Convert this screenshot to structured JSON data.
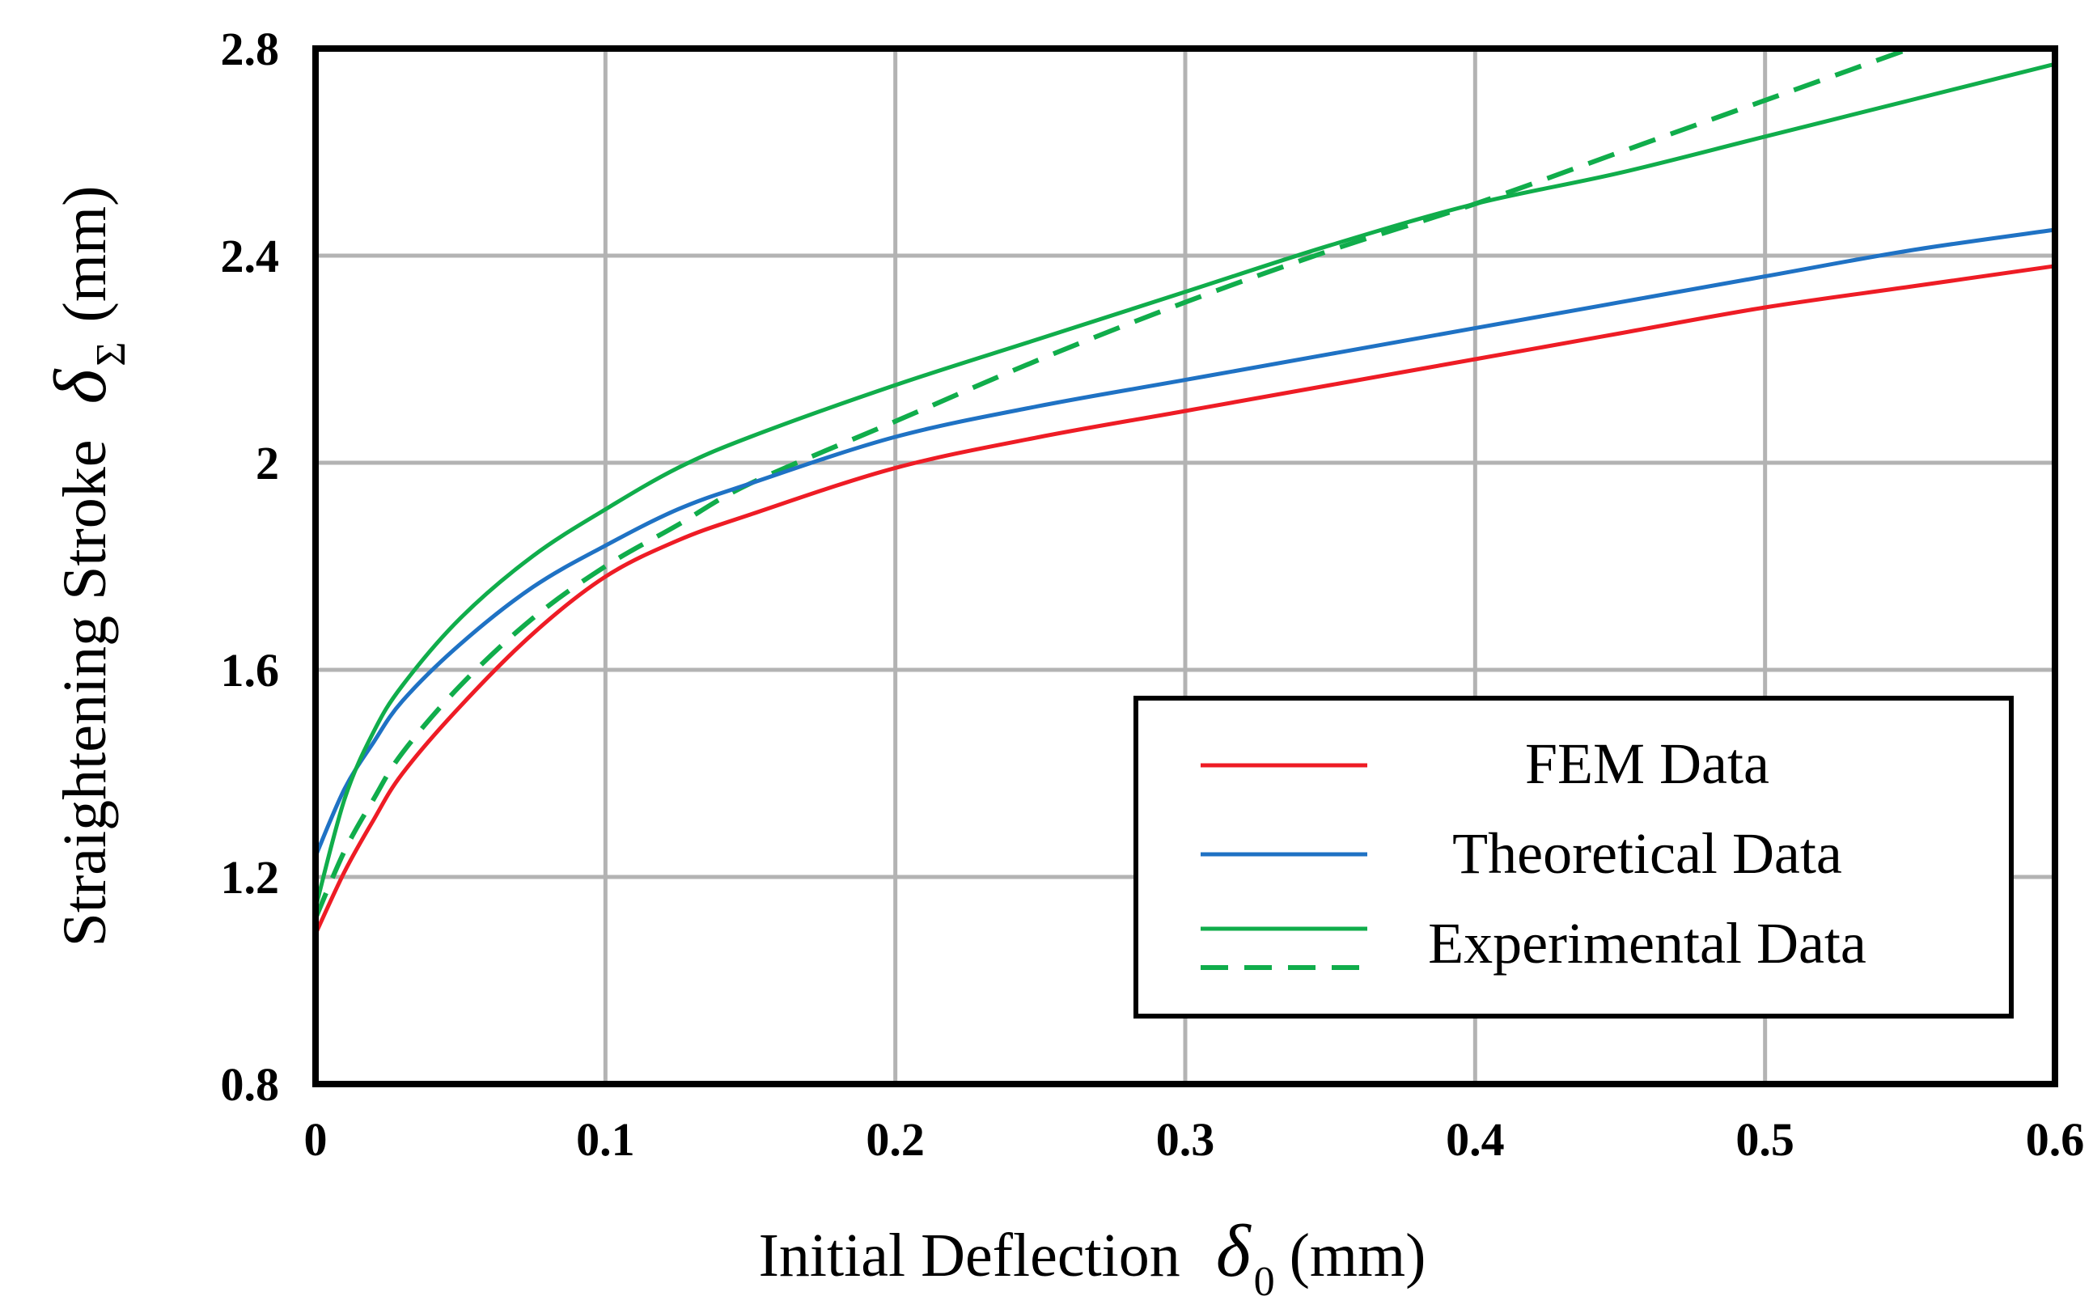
{
  "chart_data": {
    "type": "line",
    "title": "",
    "xlabel": "Initial Deflection",
    "xlabel_symbol": "δ",
    "xlabel_subscript": "0",
    "xlabel_unit": "(mm)",
    "ylabel": "Straightening Stroke",
    "ylabel_symbol": "δ",
    "ylabel_subscript": "Σ",
    "ylabel_unit": "(mm)",
    "xlim": [
      0,
      0.6
    ],
    "ylim": [
      0.8,
      2.8
    ],
    "xticks": [
      0,
      0.1,
      0.2,
      0.3,
      0.4,
      0.5,
      0.6
    ],
    "xtick_labels": [
      "0",
      "0.1",
      "0.2",
      "0.3",
      "0.4",
      "0.5",
      "0.6"
    ],
    "yticks": [
      0.8,
      1.2,
      1.6,
      2.0,
      2.4,
      2.8
    ],
    "ytick_labels": [
      "0.8",
      "1.2",
      "1.6",
      "2",
      "2.4",
      "2.8"
    ],
    "grid": true,
    "legend_position": "bottom-right",
    "series": [
      {
        "name": "FEM Data",
        "color": "#ee1c25",
        "style": "solid",
        "x": [
          0,
          0.01,
          0.02,
          0.03,
          0.05,
          0.075,
          0.1,
          0.125,
          0.15,
          0.2,
          0.25,
          0.3,
          0.35,
          0.4,
          0.45,
          0.5,
          0.55,
          0.6
        ],
        "y": [
          1.09,
          1.21,
          1.31,
          1.4,
          1.53,
          1.67,
          1.78,
          1.85,
          1.9,
          1.99,
          2.05,
          2.1,
          2.15,
          2.2,
          2.25,
          2.3,
          2.34,
          2.38
        ]
      },
      {
        "name": "Theoretical Data",
        "color": "#1f72c4",
        "style": "solid",
        "x": [
          0,
          0.01,
          0.02,
          0.03,
          0.05,
          0.075,
          0.1,
          0.125,
          0.15,
          0.2,
          0.25,
          0.3,
          0.35,
          0.4,
          0.45,
          0.5,
          0.55,
          0.6
        ],
        "y": [
          1.24,
          1.37,
          1.46,
          1.54,
          1.65,
          1.76,
          1.84,
          1.91,
          1.96,
          2.05,
          2.11,
          2.16,
          2.21,
          2.26,
          2.31,
          2.36,
          2.41,
          2.45
        ]
      },
      {
        "name": "Experimental Data",
        "color": "#10ad4b",
        "style": "solid",
        "x": [
          0,
          0.01,
          0.02,
          0.03,
          0.05,
          0.075,
          0.1,
          0.125,
          0.15,
          0.2,
          0.25,
          0.3,
          0.35,
          0.4,
          0.45,
          0.5,
          0.55,
          0.6
        ],
        "y": [
          1.14,
          1.35,
          1.48,
          1.57,
          1.7,
          1.82,
          1.91,
          1.99,
          2.05,
          2.15,
          2.24,
          2.33,
          2.42,
          2.5,
          2.56,
          2.63,
          2.7,
          2.77
        ]
      },
      {
        "name": "Experimental Data (dashed)",
        "color": "#10ad4b",
        "style": "dashed",
        "x": [
          0,
          0.01,
          0.02,
          0.03,
          0.05,
          0.075,
          0.1,
          0.125,
          0.15,
          0.2,
          0.25,
          0.3,
          0.35,
          0.4,
          0.45,
          0.5,
          0.55
        ],
        "y": [
          1.12,
          1.25,
          1.35,
          1.44,
          1.57,
          1.7,
          1.8,
          1.88,
          1.96,
          2.08,
          2.2,
          2.31,
          2.41,
          2.5,
          2.6,
          2.7,
          2.8
        ]
      }
    ],
    "legend": [
      {
        "label": "FEM Data",
        "color": "#ee1c25",
        "style": "solid"
      },
      {
        "label": "Theoretical Data",
        "color": "#1f72c4",
        "style": "solid"
      },
      {
        "label": "Experimental Data",
        "color": "#10ad4b",
        "style": "solid+dashed"
      }
    ]
  }
}
